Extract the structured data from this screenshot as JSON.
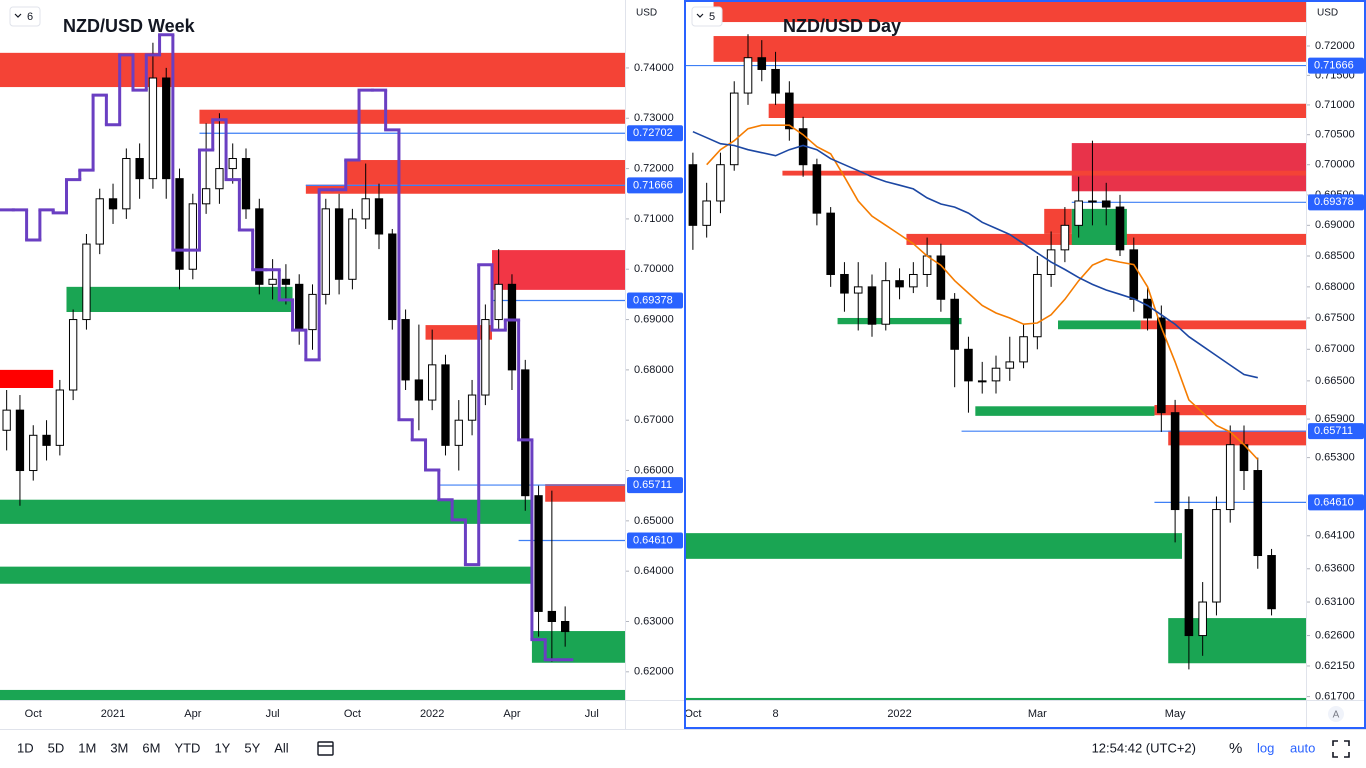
{
  "chart_data": [
    {
      "type": "candlestick",
      "title": "NZD/USD Week",
      "pane_label": "6",
      "currency": "USD",
      "log": false,
      "ylim": [
        0.6144,
        0.7535
      ],
      "yticks": [
        {
          "value": 0.74,
          "label": "0.74000"
        },
        {
          "value": 0.73,
          "label": "0.73000"
        },
        {
          "value": 0.72,
          "label": "0.72000"
        },
        {
          "value": 0.71,
          "label": "0.71000"
        },
        {
          "value": 0.7,
          "label": "0.70000"
        },
        {
          "value": 0.69,
          "label": "0.69000"
        },
        {
          "value": 0.68,
          "label": "0.68000"
        },
        {
          "value": 0.67,
          "label": "0.67000"
        },
        {
          "value": 0.66,
          "label": "0.66000"
        },
        {
          "value": 0.65,
          "label": "0.65000"
        },
        {
          "value": 0.64,
          "label": "0.64000"
        },
        {
          "value": 0.63,
          "label": "0.63000"
        },
        {
          "value": 0.62,
          "label": "0.62000"
        }
      ],
      "categories": [
        null,
        null,
        "Oct",
        null,
        null,
        null,
        null,
        null,
        "2021",
        null,
        null,
        null,
        null,
        null,
        "Apr",
        null,
        null,
        null,
        null,
        null,
        "Jul",
        null,
        null,
        null,
        null,
        null,
        "Oct",
        null,
        null,
        null,
        null,
        null,
        "2022",
        null,
        null,
        null,
        null,
        null,
        "Apr",
        null,
        null,
        null,
        null,
        null,
        "Jul",
        null,
        null
      ],
      "open": [
        0.668,
        0.672,
        0.66,
        0.667,
        0.665,
        0.676,
        0.69,
        0.705,
        0.714,
        0.712,
        0.722,
        0.718,
        0.738,
        0.718,
        0.7,
        0.713,
        0.716,
        0.72,
        0.722,
        0.712,
        0.697,
        0.698,
        0.697,
        0.688,
        0.695,
        0.712,
        0.698,
        0.71,
        0.714,
        0.707,
        0.69,
        0.678,
        0.674,
        0.681,
        0.665,
        0.67,
        0.675,
        0.69,
        0.697,
        0.68,
        0.655,
        0.632,
        0.63,
        null,
        null,
        null,
        null
      ],
      "high": [
        0.676,
        0.675,
        0.669,
        0.67,
        0.678,
        0.692,
        0.707,
        0.716,
        0.717,
        0.724,
        0.725,
        0.745,
        0.74,
        0.72,
        0.715,
        0.729,
        0.731,
        0.725,
        0.724,
        0.714,
        0.702,
        0.701,
        0.699,
        0.697,
        0.714,
        0.715,
        0.712,
        0.721,
        0.717,
        0.708,
        0.692,
        0.689,
        0.688,
        0.683,
        0.674,
        0.678,
        0.693,
        0.704,
        0.699,
        0.682,
        0.657,
        0.656,
        0.633,
        null,
        null,
        null,
        null
      ],
      "low": [
        0.664,
        0.653,
        0.658,
        0.662,
        0.663,
        0.674,
        0.688,
        0.703,
        0.709,
        0.71,
        0.714,
        0.716,
        0.714,
        0.696,
        0.698,
        0.711,
        0.713,
        0.717,
        0.71,
        0.695,
        0.694,
        0.693,
        0.685,
        0.684,
        0.693,
        0.695,
        0.696,
        0.708,
        0.704,
        0.688,
        0.676,
        0.668,
        0.672,
        0.663,
        0.66,
        0.667,
        0.673,
        0.688,
        0.676,
        0.652,
        0.627,
        0.622,
        0.625,
        null,
        null,
        null,
        null
      ],
      "close": [
        0.672,
        0.66,
        0.667,
        0.665,
        0.676,
        0.69,
        0.705,
        0.714,
        0.712,
        0.722,
        0.718,
        0.738,
        0.718,
        0.7,
        0.713,
        0.716,
        0.72,
        0.722,
        0.712,
        0.697,
        0.698,
        0.697,
        0.688,
        0.695,
        0.712,
        0.698,
        0.71,
        0.714,
        0.707,
        0.69,
        0.678,
        0.674,
        0.681,
        0.665,
        0.67,
        0.675,
        0.69,
        0.697,
        0.68,
        0.655,
        0.632,
        0.63,
        0.628,
        null,
        null,
        null,
        null
      ],
      "series": [
        {
          "color": "#6a3fc2",
          "step": true,
          "values": [
            0.7118,
            0.7118,
            0.7058,
            0.7118,
            0.7112,
            0.7178,
            0.7197,
            0.7346,
            0.7287,
            0.7426,
            0.7356,
            0.7426,
            0.7466,
            0.7038,
            0.7038,
            0.7237,
            0.7297,
            0.7178,
            0.7078,
            0.6999,
            0.6999,
            0.6939,
            0.6879,
            0.682,
            0.7158,
            0.7158,
            0.7217,
            0.7356,
            0.7356,
            0.7277,
            0.6701,
            0.6661,
            0.6601,
            0.6542,
            0.6502,
            0.6413,
            0.7009,
            0.6879,
            0.6899,
            0.6661,
            0.6264,
            0.6224,
            0.6224,
            null,
            null,
            null,
            null
          ]
        }
      ],
      "zones": [
        {
          "from": 0.7362,
          "to": 0.743,
          "start": 0,
          "end": 46,
          "color": "#f44336"
        },
        {
          "from": 0.7289,
          "to": 0.7317,
          "start": 15,
          "end": 46,
          "color": "#f44336"
        },
        {
          "from": 0.7168,
          "to": 0.7217,
          "start": 26,
          "end": 46,
          "color": "#f44336"
        },
        {
          "from": 0.715,
          "to": 0.7168,
          "start": 23,
          "end": 46,
          "color": "#f44336"
        },
        {
          "from": 0.6959,
          "to": 0.7038,
          "start": 37,
          "end": 46,
          "color": "#f23645"
        },
        {
          "from": 0.6915,
          "to": 0.6965,
          "start": 5,
          "end": 21,
          "color": "#1aa553"
        },
        {
          "from": 0.6764,
          "to": 0.68,
          "start": 0,
          "end": 3,
          "color": "#ff0000"
        },
        {
          "from": 0.686,
          "to": 0.6889,
          "start": 32,
          "end": 36,
          "color": "#f44336"
        },
        {
          "from": 0.6494,
          "to": 0.6542,
          "start": 0,
          "end": 39,
          "color": "#1aa553"
        },
        {
          "from": 0.6375,
          "to": 0.6409,
          "start": 0,
          "end": 39,
          "color": "#1aa553"
        },
        {
          "from": 0.6538,
          "to": 0.6573,
          "start": 41,
          "end": 46,
          "color": "#f44336"
        },
        {
          "from": 0.6218,
          "to": 0.6281,
          "start": 40,
          "end": 46,
          "color": "#1aa553"
        },
        {
          "from": 0.6144,
          "to": 0.6164,
          "start": 0,
          "end": 46,
          "color": "#1aa553"
        }
      ],
      "levels": [
        {
          "value": 0.72702,
          "label": "0.72702",
          "start": 15
        },
        {
          "value": 0.71666,
          "label": "0.71666",
          "start": 23
        },
        {
          "value": 0.69378,
          "label": "0.69378",
          "start": 37
        },
        {
          "value": 0.65711,
          "label": "0.65711",
          "start": 33
        },
        {
          "value": 0.6461,
          "label": "0.64610",
          "start": 39
        }
      ]
    },
    {
      "type": "candlestick",
      "title": "NZD/USD Day",
      "pane_label": "5",
      "currency": "USD",
      "log": true,
      "ylim": [
        0.6165,
        0.7279
      ],
      "yticks": [
        {
          "value": 0.72,
          "label": "0.72000"
        },
        {
          "value": 0.715,
          "label": "0.71500"
        },
        {
          "value": 0.71,
          "label": "0.71000"
        },
        {
          "value": 0.705,
          "label": "0.70500"
        },
        {
          "value": 0.7,
          "label": "0.70000"
        },
        {
          "value": 0.695,
          "label": "0.69500"
        },
        {
          "value": 0.69,
          "label": "0.69000"
        },
        {
          "value": 0.685,
          "label": "0.68500"
        },
        {
          "value": 0.68,
          "label": "0.68000"
        },
        {
          "value": 0.675,
          "label": "0.67500"
        },
        {
          "value": 0.67,
          "label": "0.67000"
        },
        {
          "value": 0.665,
          "label": "0.66500"
        },
        {
          "value": 0.659,
          "label": "0.65900"
        },
        {
          "value": 0.653,
          "label": "0.65300"
        },
        {
          "value": 0.641,
          "label": "0.64100"
        },
        {
          "value": 0.636,
          "label": "0.63600"
        },
        {
          "value": 0.631,
          "label": "0.63100"
        },
        {
          "value": 0.626,
          "label": "0.62600"
        },
        {
          "value": 0.6215,
          "label": "0.62150"
        },
        {
          "value": 0.617,
          "label": "0.61700"
        }
      ],
      "categories": [
        "Oct",
        null,
        null,
        null,
        null,
        null,
        "8",
        null,
        null,
        null,
        null,
        null,
        null,
        null,
        null,
        "2022",
        null,
        null,
        null,
        null,
        null,
        null,
        null,
        null,
        null,
        "Mar",
        null,
        null,
        null,
        null,
        null,
        null,
        null,
        null,
        null,
        "May",
        null,
        null,
        null,
        null,
        null,
        null,
        null,
        null,
        null
      ],
      "open": [
        0.7,
        0.69,
        0.694,
        0.7,
        0.712,
        0.718,
        0.716,
        0.712,
        0.706,
        0.7,
        0.692,
        0.682,
        0.679,
        0.68,
        0.674,
        0.681,
        0.68,
        0.682,
        0.685,
        0.678,
        0.67,
        0.665,
        0.665,
        0.667,
        0.668,
        0.672,
        0.682,
        0.686,
        0.69,
        0.694,
        0.694,
        0.693,
        0.686,
        0.678,
        0.675,
        0.66,
        0.645,
        0.626,
        0.631,
        0.645,
        0.655,
        0.651,
        0.638,
        null,
        null
      ],
      "high": [
        0.702,
        0.697,
        0.702,
        0.714,
        0.722,
        0.721,
        0.719,
        0.714,
        0.708,
        0.701,
        0.693,
        0.684,
        0.684,
        0.682,
        0.684,
        0.683,
        0.684,
        0.688,
        0.687,
        0.679,
        0.672,
        0.668,
        0.669,
        0.672,
        0.674,
        0.685,
        0.689,
        0.693,
        0.698,
        0.704,
        0.697,
        0.695,
        0.688,
        0.68,
        0.677,
        0.662,
        0.647,
        0.634,
        0.647,
        0.658,
        0.658,
        0.653,
        0.639,
        null,
        null
      ],
      "low": [
        0.686,
        0.688,
        0.692,
        0.699,
        0.71,
        0.714,
        0.71,
        0.704,
        0.698,
        0.69,
        0.68,
        0.676,
        0.673,
        0.672,
        0.673,
        0.678,
        0.679,
        0.68,
        0.676,
        0.664,
        0.66,
        0.663,
        0.663,
        0.665,
        0.667,
        0.67,
        0.68,
        0.684,
        0.688,
        0.69,
        0.69,
        0.685,
        0.676,
        0.673,
        0.657,
        0.64,
        0.621,
        0.623,
        0.629,
        0.643,
        0.648,
        0.636,
        0.629,
        null,
        null
      ],
      "close": [
        0.69,
        0.694,
        0.7,
        0.712,
        0.718,
        0.716,
        0.712,
        0.706,
        0.7,
        0.692,
        0.682,
        0.679,
        0.68,
        0.674,
        0.681,
        0.68,
        0.682,
        0.685,
        0.678,
        0.67,
        0.665,
        0.665,
        0.667,
        0.668,
        0.672,
        0.682,
        0.686,
        0.69,
        0.694,
        0.694,
        0.693,
        0.686,
        0.678,
        0.675,
        0.66,
        0.645,
        0.626,
        0.631,
        0.645,
        0.655,
        0.651,
        0.638,
        0.63,
        null,
        null
      ],
      "series": [
        {
          "color": "#f57c00",
          "step": false,
          "values": [
            null,
            0.7,
            0.7025,
            0.704,
            0.706,
            0.7066,
            0.7066,
            0.7066,
            0.705,
            0.703,
            0.7018,
            0.698,
            0.694,
            0.6915,
            0.69,
            0.6885,
            0.687,
            0.685,
            0.6835,
            0.681,
            0.679,
            0.677,
            0.6758,
            0.675,
            0.674,
            0.6742,
            0.6755,
            0.678,
            0.681,
            0.6835,
            0.6845,
            0.684,
            0.6836,
            0.68,
            0.6735,
            0.668,
            0.662,
            0.66,
            0.658,
            0.657,
            0.655,
            0.6527,
            null,
            null,
            null
          ]
        },
        {
          "color": "#1c47a3",
          "step": false,
          "values": [
            0.7055,
            0.7045,
            0.7035,
            0.7032,
            0.7025,
            0.702,
            0.7015,
            0.7025,
            0.7032,
            0.7025,
            0.701,
            0.7,
            0.699,
            0.698,
            0.6972,
            0.6966,
            0.696,
            0.6945,
            0.6935,
            0.693,
            0.692,
            0.6905,
            0.6895,
            0.6885,
            0.687,
            0.6855,
            0.684,
            0.6828,
            0.6815,
            0.6804,
            0.6795,
            0.6788,
            0.6781,
            0.677,
            0.6755,
            0.674,
            0.672,
            0.6705,
            0.669,
            0.6675,
            0.666,
            0.6655,
            null,
            null,
            null
          ]
        }
      ],
      "zones": [
        {
          "from": 0.7241,
          "to": 0.7279,
          "start": 2,
          "end": 44,
          "color": "#f44336"
        },
        {
          "from": 0.7173,
          "to": 0.7217,
          "start": 2,
          "end": 44,
          "color": "#f44336"
        },
        {
          "from": 0.7078,
          "to": 0.7102,
          "start": 6,
          "end": 44,
          "color": "#f44336"
        },
        {
          "from": 0.6956,
          "to": 0.7036,
          "start": 28,
          "end": 44,
          "color": "#e8334a"
        },
        {
          "from": 0.6982,
          "to": 0.699,
          "start": 7,
          "end": 44,
          "color": "#f44336"
        },
        {
          "from": 0.6886,
          "to": 0.6927,
          "start": 26,
          "end": 27,
          "color": "#f44336"
        },
        {
          "from": 0.6868,
          "to": 0.6886,
          "start": 16,
          "end": 44,
          "color": "#f44336"
        },
        {
          "from": 0.6868,
          "to": 0.6927,
          "start": 28,
          "end": 31,
          "color": "#1aa553"
        },
        {
          "from": 0.6732,
          "to": 0.6746,
          "start": 33,
          "end": 44,
          "color": "#f44336"
        },
        {
          "from": 0.6732,
          "to": 0.6746,
          "start": 27,
          "end": 32,
          "color": "#1aa553"
        },
        {
          "from": 0.674,
          "to": 0.675,
          "start": 11,
          "end": 19,
          "color": "#1aa553"
        },
        {
          "from": 0.6596,
          "to": 0.6612,
          "start": 34,
          "end": 44,
          "color": "#f44336"
        },
        {
          "from": 0.6595,
          "to": 0.661,
          "start": 21,
          "end": 33,
          "color": "#1aa553"
        },
        {
          "from": 0.6549,
          "to": 0.6572,
          "start": 35,
          "end": 44,
          "color": "#f44336"
        },
        {
          "from": 0.6375,
          "to": 0.6414,
          "start": 0,
          "end": 35,
          "color": "#1aa553"
        },
        {
          "from": 0.6219,
          "to": 0.6286,
          "start": 35,
          "end": 44,
          "color": "#1aa553"
        },
        {
          "from": 0.6165,
          "to": 0.6168,
          "start": 0,
          "end": 44,
          "color": "#1aa553"
        }
      ],
      "levels": [
        {
          "value": 0.71666,
          "label": "0.71666",
          "start": 0
        },
        {
          "value": 0.69378,
          "label": "0.69378",
          "start": 28
        },
        {
          "value": 0.65711,
          "label": "0.65711",
          "start": 20
        },
        {
          "value": 0.6461,
          "label": "0.64610",
          "start": 34
        }
      ]
    }
  ],
  "toolbar": {
    "ranges": [
      "1D",
      "5D",
      "1M",
      "3M",
      "6M",
      "YTD",
      "1Y",
      "5Y",
      "All"
    ],
    "clock": "12:54:42 (UTC+2)",
    "percent": "%",
    "log": "log",
    "auto": "auto",
    "scale_button": "A"
  }
}
